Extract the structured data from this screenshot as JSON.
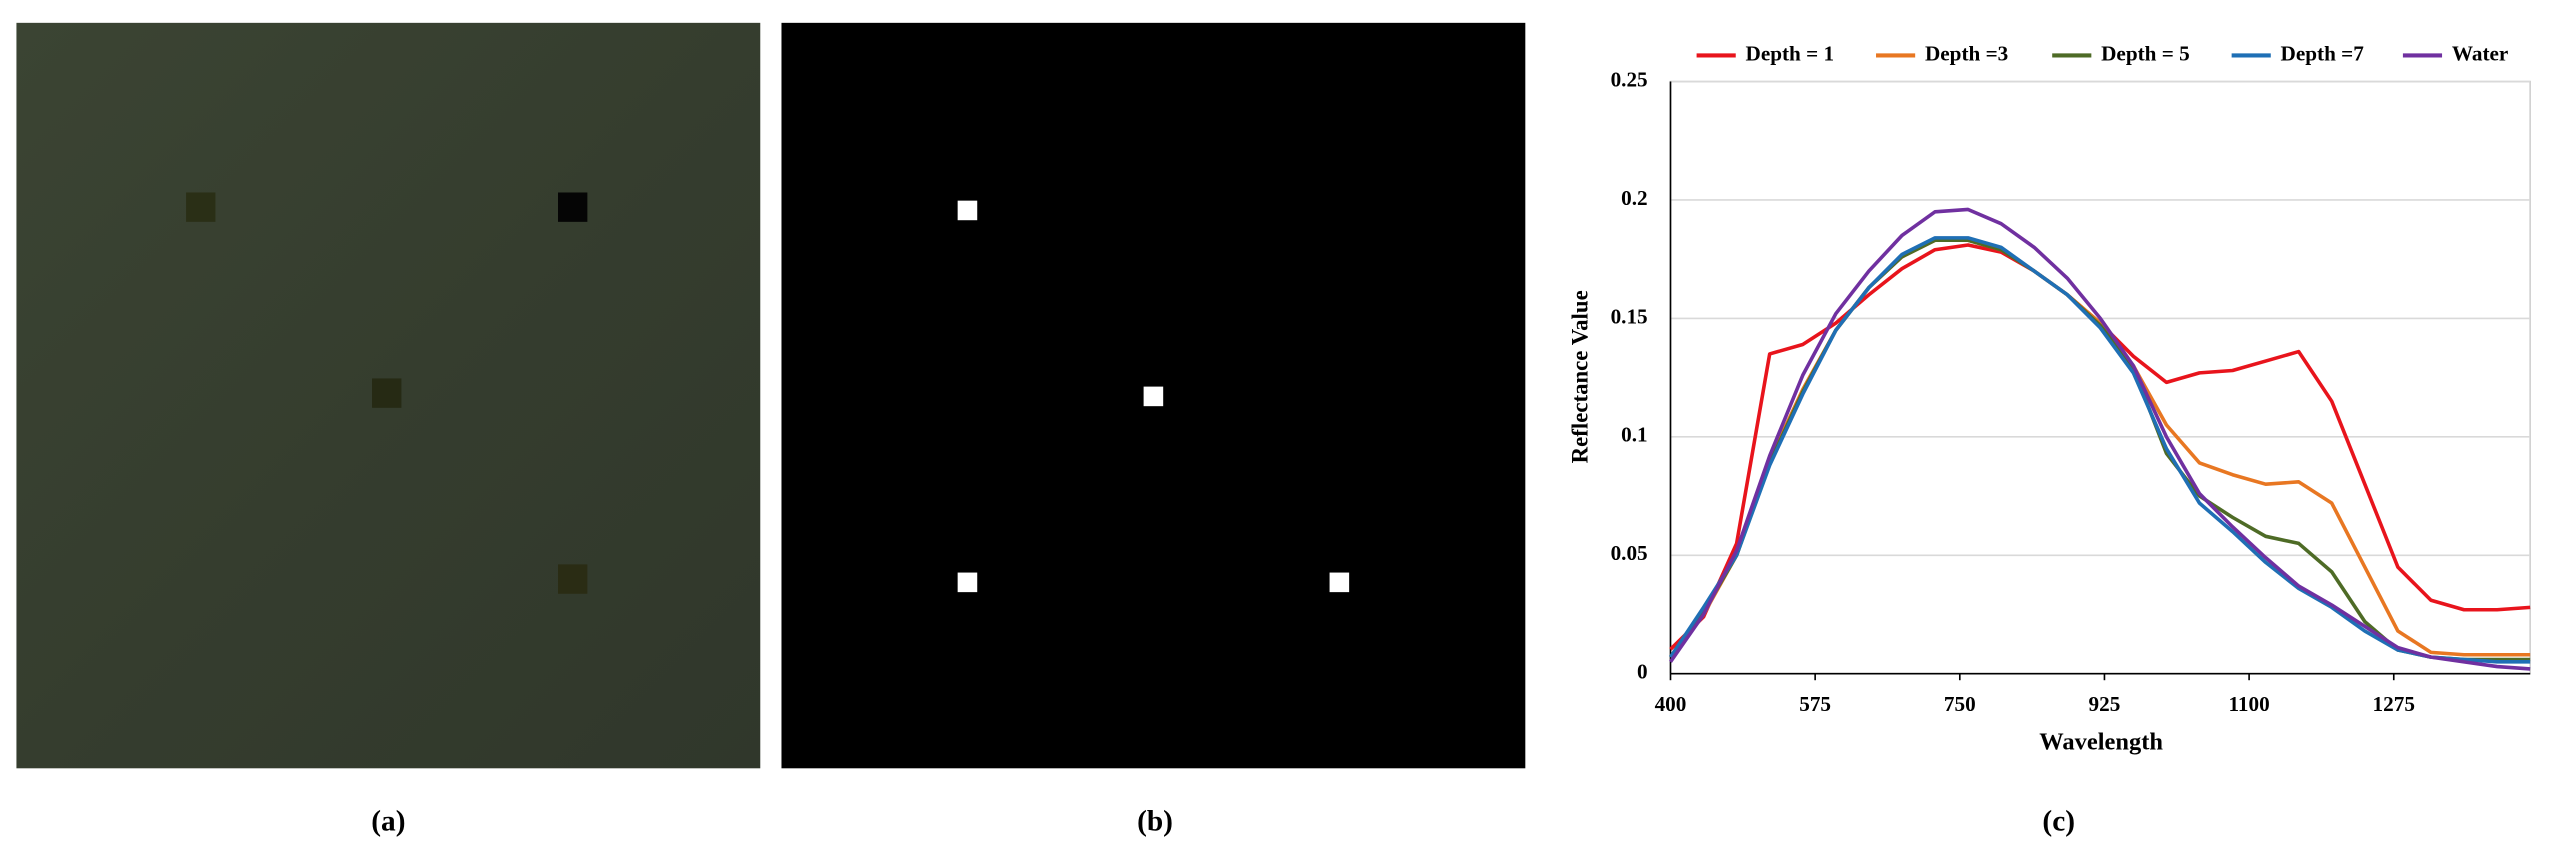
{
  "panel_labels": [
    "(a)",
    "(b)",
    "(c)"
  ],
  "chart_data": {
    "type": "line",
    "x_label": "Wavelength",
    "y_label": "Reflectance Value",
    "x": [
      400,
      440,
      480,
      520,
      560,
      600,
      640,
      680,
      720,
      760,
      800,
      840,
      880,
      920,
      960,
      1000,
      1040,
      1080,
      1120,
      1160,
      1200,
      1240,
      1280,
      1320,
      1360,
      1400,
      1440
    ],
    "series": [
      {
        "name": "Depth = 1",
        "color": "#e8141c",
        "values": [
          0.0103,
          0.024,
          0.055,
          0.135,
          0.139,
          0.148,
          0.16,
          0.171,
          0.179,
          0.181,
          0.178,
          0.17,
          0.16,
          0.148,
          0.134,
          0.123,
          0.127,
          0.128,
          0.132,
          0.136,
          0.115,
          0.08,
          0.045,
          0.031,
          0.027,
          0.027,
          0.028
        ]
      },
      {
        "name": "Depth =3",
        "color": "#e87722",
        "values": [
          0.007,
          0.025,
          0.05,
          0.09,
          0.12,
          0.145,
          0.163,
          0.176,
          0.183,
          0.183,
          0.179,
          0.17,
          0.16,
          0.148,
          0.13,
          0.105,
          0.089,
          0.084,
          0.08,
          0.081,
          0.072,
          0.045,
          0.018,
          0.009,
          0.008,
          0.008,
          0.008
        ]
      },
      {
        "name": "Depth = 5",
        "color": "#4e6b26",
        "values": [
          0.007,
          0.026,
          0.05,
          0.089,
          0.119,
          0.145,
          0.163,
          0.176,
          0.183,
          0.183,
          0.179,
          0.17,
          0.16,
          0.147,
          0.129,
          0.093,
          0.075,
          0.066,
          0.058,
          0.055,
          0.043,
          0.022,
          0.01,
          0.007,
          0.006,
          0.006,
          0.006
        ]
      },
      {
        "name": "Depth =7",
        "color": "#1f6fb5",
        "values": [
          0.007,
          0.028,
          0.05,
          0.088,
          0.118,
          0.145,
          0.163,
          0.177,
          0.184,
          0.184,
          0.18,
          0.17,
          0.16,
          0.146,
          0.127,
          0.095,
          0.072,
          0.06,
          0.047,
          0.036,
          0.028,
          0.018,
          0.01,
          0.007,
          0.006,
          0.005,
          0.005
        ]
      },
      {
        "name": "Water",
        "color": "#7030a0",
        "values": [
          0.005,
          0.025,
          0.052,
          0.092,
          0.126,
          0.152,
          0.17,
          0.185,
          0.195,
          0.196,
          0.19,
          0.18,
          0.167,
          0.15,
          0.13,
          0.1,
          0.076,
          0.062,
          0.049,
          0.037,
          0.029,
          0.02,
          0.011,
          0.007,
          0.005,
          0.003,
          0.002
        ]
      }
    ],
    "xlim": [
      400,
      1440
    ],
    "xticks": [
      400,
      575,
      750,
      925,
      1100,
      1275
    ],
    "ylim": [
      0,
      0.25
    ],
    "yticks": [
      0,
      0.05,
      0.1,
      0.15,
      0.2,
      0.25
    ],
    "grid": true,
    "legend": "top"
  }
}
